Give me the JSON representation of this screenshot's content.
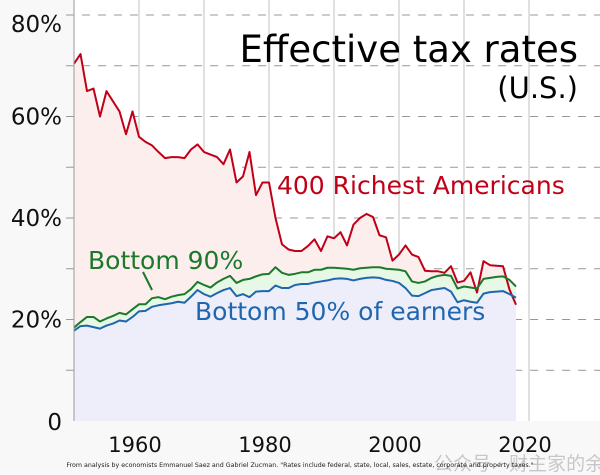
{
  "chart_data": {
    "type": "line",
    "title": "Effective tax rates",
    "subtitle": "(U.S.)",
    "xlabel": "",
    "ylabel": "",
    "xlim": [
      1950,
      2024
    ],
    "ylim": [
      0,
      80
    ],
    "y_ticks": [
      "0",
      "20%",
      "40%",
      "60%",
      "80%"
    ],
    "x_ticks": [
      "1960",
      "1980",
      "2000",
      "2020"
    ],
    "grid": true,
    "x_start": 1950,
    "series": [
      {
        "name": "400 Richest Americans",
        "color": "#c00018",
        "fill": "#fdeeee",
        "values": [
          70.4,
          72.3,
          65,
          65.5,
          60,
          65,
          63,
          61,
          56.5,
          61,
          56,
          55,
          54.3,
          53,
          51.8,
          52,
          52,
          51.8,
          53.5,
          54.5,
          53,
          52.5,
          52,
          50.6,
          53.5,
          47,
          48.2,
          53,
          44.5,
          47,
          47,
          40,
          34.8,
          33.8,
          33.5,
          33.5,
          34.5,
          35.8,
          33.5,
          36.4,
          36,
          37.2,
          34.6,
          38.7,
          40,
          40.8,
          40.2,
          36.6,
          36.2,
          31.6,
          32.8,
          34.6,
          32.8,
          32.3,
          29.6,
          29.5,
          29.5,
          29.2,
          30.5,
          27.3,
          27.6,
          29.3,
          25.3,
          31.5,
          30.7,
          30.6,
          30.5,
          25.9,
          22.9
        ]
      },
      {
        "name": "Bottom 90%",
        "color": "#1a7a2a",
        "fill": "#e8f8e6",
        "values": [
          18.4,
          19.5,
          20.5,
          20.5,
          19.6,
          20.2,
          20.7,
          21.3,
          21,
          22,
          23,
          23,
          24.2,
          24.4,
          24,
          24.5,
          24.8,
          25,
          26,
          27.4,
          26.8,
          26.3,
          27.3,
          28,
          28.6,
          27.2,
          27.8,
          28,
          28.5,
          28.9,
          29,
          30.3,
          29.2,
          28.8,
          29,
          29.3,
          29.3,
          29.8,
          29.8,
          30.2,
          30.2,
          30.1,
          30,
          29.8,
          30.1,
          30.2,
          30.3,
          30.3,
          30,
          29.9,
          29.8,
          29.5,
          27.5,
          27.2,
          27.5,
          28.2,
          28.6,
          28.8,
          28.6,
          26.1,
          26.5,
          26.3,
          26.1,
          28,
          28.2,
          28.4,
          28.5,
          27.8,
          26.5
        ]
      },
      {
        "name": "Bottom 50% of earners",
        "color": "#1f66b0",
        "fill": "#eeeefb",
        "values": [
          17.8,
          18.7,
          18.8,
          18.5,
          18.2,
          18.8,
          19.2,
          19.8,
          19.6,
          20.5,
          21.6,
          21.7,
          22.5,
          22.8,
          23,
          23.2,
          23.5,
          23.3,
          24.5,
          25.8,
          25,
          24.5,
          25.2,
          25.8,
          26.2,
          24.6,
          25,
          24.4,
          25.5,
          25.6,
          25.6,
          26.7,
          26.2,
          26.2,
          26.8,
          27,
          27,
          27.3,
          27.5,
          27.7,
          28,
          28.1,
          28,
          27.7,
          28,
          28.2,
          28.3,
          28.2,
          27.8,
          27.6,
          27.2,
          26.2,
          24.7,
          24.6,
          25.2,
          25.8,
          26,
          26.2,
          25.5,
          23.4,
          23.8,
          23.5,
          23.3,
          25.1,
          25.4,
          25.5,
          25.6,
          25,
          24.3
        ]
      }
    ],
    "footnote": "From analysis by economists Emmanuel Saez and Gabriel Zucman. \"Rates include federal, state, local, sales, estate, corporate and property taxes.\""
  },
  "watermark": "公众号 · 财主家的余粮"
}
